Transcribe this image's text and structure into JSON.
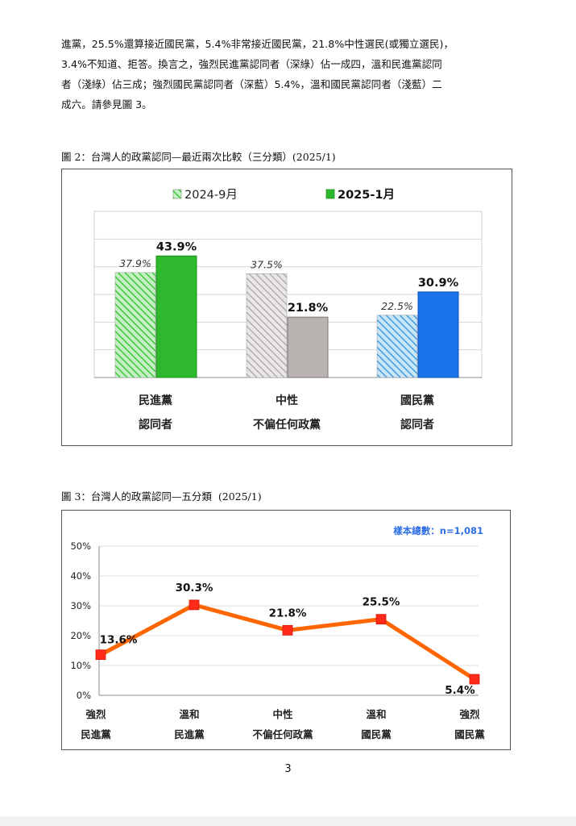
{
  "paragraph": {
    "lines": [
      "進黨，25.5%還算接近國民黨，5.4%非常接近國民黨，21.8%中性選民(或獨立選民)，",
      "3.4%不知道、拒答。換言之，強烈民進黨認同者（深綠）佔一成四，溫和民進黨認同",
      "者（淺綠）佔三成；強烈國民黨認同者（深藍）5.4%，溫和國民黨認同者（淺藍）二",
      "成六。請參見圖 3。"
    ]
  },
  "figure2": {
    "caption": "圖 2：台灣人的政黨認同—最近兩次比較（三分類）(2025/1)",
    "legend": [
      "2024-9月",
      "2025-1月"
    ]
  },
  "figure3": {
    "caption": "圖 3：台灣人的政黨認同—五分類  (2025/1)",
    "sample_note": "樣本總數：n=1,081"
  },
  "page_number": "3",
  "colors": {
    "green_dark": "#2db82d",
    "green_light": "#3cc83c",
    "gray_dark": "#b8b3b1",
    "gray_light": "#9a9594",
    "blue_dark": "#1a73e8",
    "blue_light": "#2f8fd8",
    "orange": "#ff6600",
    "marker": "#ff2a1a",
    "note_blue": "#2f6fe4"
  },
  "chart_data": [
    {
      "type": "bar",
      "categories": [
        [
          "民進黨",
          "認同者"
        ],
        [
          "中性",
          "不偏任何政黨"
        ],
        [
          "國民黨",
          "認同者"
        ]
      ],
      "series": [
        {
          "name": "2024-9月",
          "values": [
            37.9,
            37.5,
            22.5
          ],
          "labels": [
            "37.9%",
            "37.5%",
            "22.5%"
          ]
        },
        {
          "name": "2025-1月",
          "values": [
            43.9,
            21.8,
            30.9
          ],
          "labels": [
            "43.9%",
            "21.8%",
            "30.9%"
          ]
        }
      ],
      "ylim": [
        0,
        60
      ],
      "grid": true,
      "legend_position": "top"
    },
    {
      "type": "line",
      "categories": [
        [
          "強烈",
          "民進黨"
        ],
        [
          "溫和",
          "民進黨"
        ],
        [
          "中性",
          "不偏任何政黨"
        ],
        [
          "溫和",
          "國民黨"
        ],
        [
          "強烈",
          "國民黨"
        ]
      ],
      "values": [
        13.6,
        30.3,
        21.8,
        25.5,
        5.4
      ],
      "value_labels": [
        "13.6%",
        "30.3%",
        "21.8%",
        "25.5%",
        "5.4%"
      ],
      "yticks": [
        "0%",
        "10%",
        "20%",
        "30%",
        "40%",
        "50%"
      ],
      "ylim": [
        0,
        50
      ],
      "grid": true
    }
  ]
}
